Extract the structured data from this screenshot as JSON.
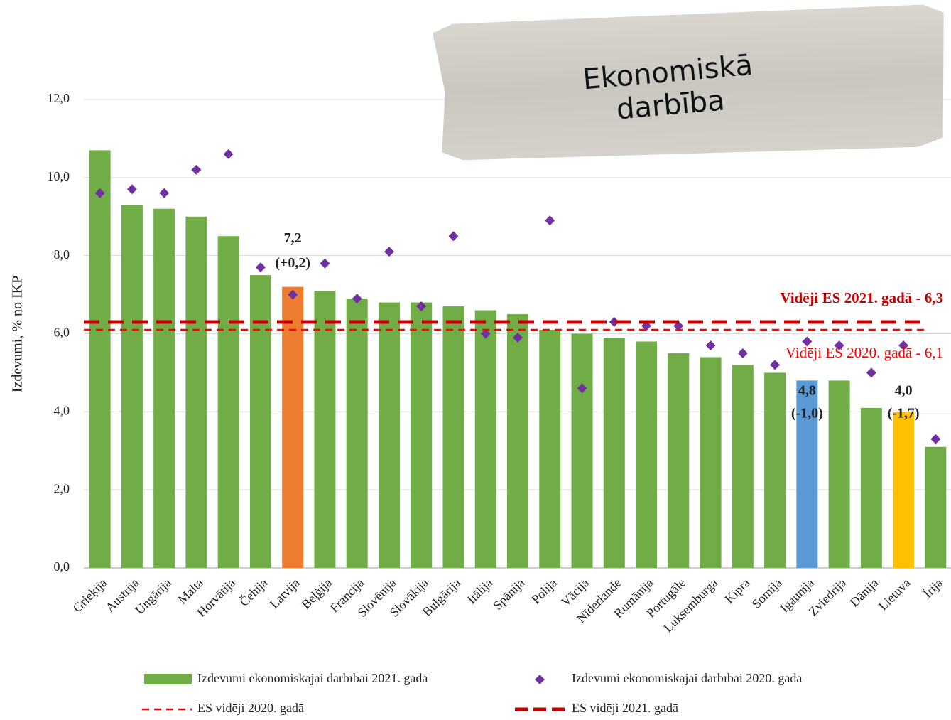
{
  "chart_data": {
    "type": "bar",
    "title": "Ekonomiskā darbība",
    "y_label": "Izdevumi, % no IKP",
    "categories": [
      "Grieķija",
      "Austrija",
      "Ungārija",
      "Malta",
      "Horvātija",
      "Čehija",
      "Latvija",
      "Beļģija",
      "Francija",
      "Slovēnija",
      "Slovākija",
      "Bulgārija",
      "Itālija",
      "Spānija",
      "Polija",
      "Vācija",
      "Nīderlande",
      "Rumānija",
      "Portugāle",
      "Luksemburga",
      "Kipra",
      "Somija",
      "Igaunija",
      "Zviedrija",
      "Dānija",
      "Lietuva",
      "Īrija"
    ],
    "series": [
      {
        "name": "Izdevumi ekonomiskajai darbībai 2021. gadā",
        "type": "bar",
        "color": "#70ad47",
        "colors": [
          "#70ad47",
          "#70ad47",
          "#70ad47",
          "#70ad47",
          "#70ad47",
          "#70ad47",
          "#ed7d31",
          "#70ad47",
          "#70ad47",
          "#70ad47",
          "#70ad47",
          "#70ad47",
          "#70ad47",
          "#70ad47",
          "#70ad47",
          "#70ad47",
          "#70ad47",
          "#70ad47",
          "#70ad47",
          "#70ad47",
          "#70ad47",
          "#70ad47",
          "#5b9bd5",
          "#70ad47",
          "#70ad47",
          "#ffc000",
          "#70ad47"
        ],
        "values": [
          10.7,
          9.3,
          9.2,
          9.0,
          8.5,
          7.5,
          7.2,
          7.1,
          6.9,
          6.8,
          6.8,
          6.7,
          6.6,
          6.5,
          6.1,
          6.0,
          5.9,
          5.8,
          5.5,
          5.4,
          5.2,
          5.0,
          4.8,
          4.8,
          4.1,
          4.0,
          3.1
        ],
        "value_labels": [
          null,
          null,
          null,
          null,
          null,
          null,
          "7,2",
          null,
          null,
          null,
          null,
          null,
          null,
          null,
          null,
          null,
          null,
          null,
          null,
          null,
          null,
          null,
          "4,8",
          null,
          null,
          "4,0",
          null
        ],
        "change_labels": [
          null,
          null,
          null,
          null,
          null,
          null,
          "(+0,2)",
          null,
          null,
          null,
          null,
          null,
          null,
          null,
          null,
          null,
          null,
          null,
          null,
          null,
          null,
          null,
          "(-1,0)",
          null,
          null,
          "(-1,7)",
          null
        ]
      },
      {
        "name": "Izdevumi ekonomiskajai darbībai 2020. gadā",
        "type": "scatter",
        "color": "#7030a0",
        "values": [
          9.6,
          9.7,
          9.6,
          10.2,
          10.6,
          7.7,
          7.0,
          7.8,
          6.9,
          8.1,
          6.7,
          8.5,
          6.0,
          5.9,
          8.9,
          4.6,
          6.3,
          6.2,
          6.2,
          5.7,
          5.5,
          5.2,
          5.8,
          5.7,
          5.0,
          5.7,
          3.3
        ]
      }
    ],
    "reference_lines": [
      {
        "name": "ES vidēji 2020. gadā",
        "label": "Vidēji ES 2020. gadā - 6,1",
        "value": 6.1,
        "color": "#ff0000"
      },
      {
        "name": "ES vidēji 2021. gadā",
        "label": "Vidēji ES 2021. gadā - 6,3",
        "value": 6.3,
        "color": "#c00000"
      }
    ],
    "ylim": [
      0,
      12
    ],
    "yticks": [
      {
        "value": 0,
        "label": "0,0"
      },
      {
        "value": 2,
        "label": "2,0"
      },
      {
        "value": 4,
        "label": "4,0"
      },
      {
        "value": 6,
        "label": "6,0"
      },
      {
        "value": 8,
        "label": "8,0"
      },
      {
        "value": 10,
        "label": "10,0"
      },
      {
        "value": 12,
        "label": "12,0"
      }
    ],
    "grid": true
  }
}
